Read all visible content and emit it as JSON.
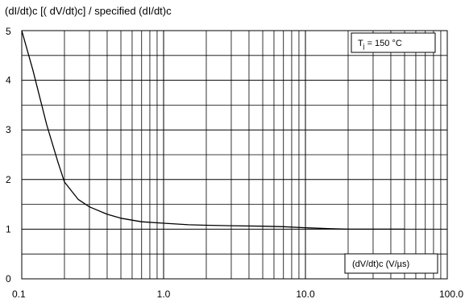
{
  "chart_data": {
    "type": "line",
    "title": "(dI/dt)c [( dV/dt)c]  / specified (dI/dt)c",
    "xlabel": "(dV/dt)c (V/µs)",
    "ylabel": "",
    "x_scale": "log",
    "xlim": [
      0.1,
      100.0
    ],
    "ylim": [
      0,
      5
    ],
    "x_tick_labels": [
      "0.1",
      "1.0",
      "10.0",
      "100.0"
    ],
    "x_tick_values": [
      0.1,
      1.0,
      10.0,
      100.0
    ],
    "y_tick_labels": [
      "0",
      "1",
      "2",
      "3",
      "4",
      "5"
    ],
    "y_tick_values": [
      0,
      1,
      2,
      3,
      4,
      5
    ],
    "grid": true,
    "annotation": {
      "prefix": "T",
      "subscript": "j",
      "suffix": " = 150 °C"
    },
    "series": [
      {
        "x": [
          0.1,
          0.12,
          0.15,
          0.18,
          0.2,
          0.25,
          0.3,
          0.4,
          0.5,
          0.7,
          1.0,
          1.5,
          2.0,
          3.0,
          5.0,
          7.0,
          10.0,
          15.0,
          20.0,
          30.0,
          50.0
        ],
        "values": [
          5.0,
          4.2,
          3.1,
          2.35,
          1.95,
          1.6,
          1.45,
          1.3,
          1.22,
          1.15,
          1.12,
          1.09,
          1.08,
          1.07,
          1.06,
          1.05,
          1.03,
          1.01,
          1.0,
          1.0,
          1.0
        ]
      }
    ]
  }
}
